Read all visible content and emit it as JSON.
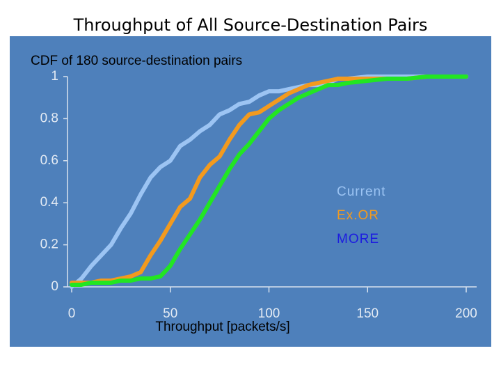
{
  "chart_data": {
    "type": "line",
    "title": "Throughput of All Source-Destination Pairs",
    "subtitle": "CDF of 180 source-destination pairs",
    "x_label": "Throughput [packets/s]",
    "x": [
      0,
      5,
      10,
      15,
      20,
      25,
      30,
      35,
      40,
      45,
      50,
      55,
      60,
      65,
      70,
      75,
      80,
      85,
      90,
      95,
      100,
      105,
      110,
      115,
      120,
      125,
      130,
      135,
      140,
      150,
      160,
      170,
      180,
      190,
      200
    ],
    "series": [
      {
        "name": "Current",
        "color": "#9cc4f3",
        "legend_color": "#9cc4f3",
        "values": [
          0,
          0.04,
          0.1,
          0.15,
          0.2,
          0.28,
          0.35,
          0.44,
          0.52,
          0.57,
          0.6,
          0.67,
          0.7,
          0.74,
          0.77,
          0.82,
          0.84,
          0.87,
          0.88,
          0.91,
          0.93,
          0.93,
          0.94,
          0.95,
          0.96,
          0.96,
          0.97,
          0.99,
          0.99,
          1,
          1,
          1,
          1,
          1,
          1
        ]
      },
      {
        "name": "Ex.OR",
        "color": "#f39a1e",
        "legend_color": "#f39a1e",
        "values": [
          0.02,
          0.02,
          0.02,
          0.03,
          0.03,
          0.04,
          0.05,
          0.07,
          0.15,
          0.22,
          0.3,
          0.38,
          0.42,
          0.52,
          0.58,
          0.62,
          0.7,
          0.77,
          0.82,
          0.83,
          0.86,
          0.89,
          0.92,
          0.94,
          0.96,
          0.97,
          0.98,
          0.99,
          0.99,
          0.99,
          0.99,
          0.99,
          1,
          1,
          1
        ]
      },
      {
        "name": "MORE",
        "color": "#22e622",
        "legend_color": "#1c1ce0",
        "values": [
          0.01,
          0.01,
          0.02,
          0.02,
          0.02,
          0.03,
          0.03,
          0.04,
          0.04,
          0.05,
          0.1,
          0.18,
          0.25,
          0.32,
          0.4,
          0.48,
          0.56,
          0.63,
          0.68,
          0.74,
          0.8,
          0.84,
          0.87,
          0.9,
          0.92,
          0.94,
          0.96,
          0.96,
          0.97,
          0.98,
          0.99,
          0.99,
          1,
          1,
          1
        ]
      }
    ],
    "xlim": [
      0,
      200
    ],
    "xticks": [
      0,
      50,
      100,
      150,
      200
    ],
    "ylim": [
      0,
      1
    ],
    "yticks": [
      0,
      0.2,
      0.4,
      0.6,
      0.8,
      1
    ],
    "legend": "right"
  }
}
